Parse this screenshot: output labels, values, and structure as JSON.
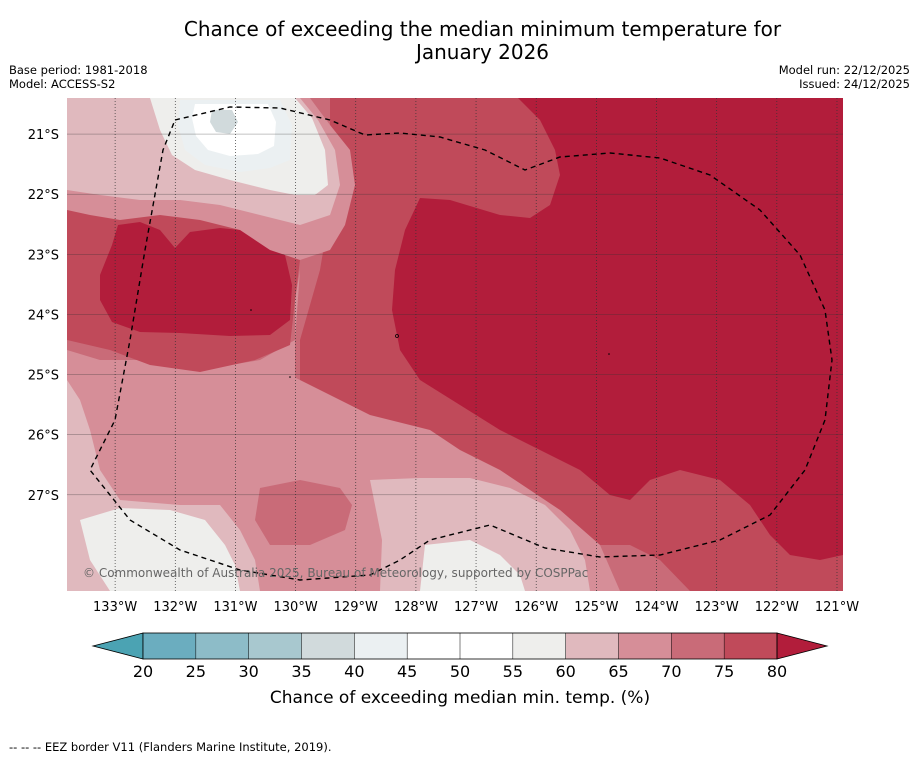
{
  "title_line1": "Chance of exceeding the median minimum temperature for",
  "title_line2": "January 2026",
  "meta": {
    "base_period": "Base period: 1981-2018",
    "model": "Model: ACCESS-S2",
    "model_run": "Model run: 22/12/2025",
    "issued": "Issued: 24/12/2025"
  },
  "copyright": "© Commonwealth of Australia 2025, Bureau of Meteorology, supported by COSPPac",
  "footer": "--  --  -- EEZ border V11 (Flanders Marine Institute, 2019).",
  "colors": {
    "c20": "#4ba3b3",
    "c25": "#6badbf",
    "c30": "#8dbcc8",
    "c35": "#a8c8cf",
    "c40": "#d1dadc",
    "c45": "#ebf0f2",
    "c50": "#ffffff",
    "c55": "#ffffff",
    "c60": "#eeeeec",
    "c65": "#e0b9be",
    "c70": "#d68e98",
    "c75": "#c96b78",
    "c80": "#c04a5a",
    "c85": "#b21d3b"
  },
  "chart_data": {
    "type": "heatmap",
    "title": "Chance of exceeding the median minimum temperature for January 2026",
    "xlabel": "",
    "ylabel": "",
    "x_ticks": [
      "133°W",
      "132°W",
      "131°W",
      "130°W",
      "129°W",
      "128°W",
      "127°W",
      "126°W",
      "125°W",
      "124°W",
      "123°W",
      "122°W",
      "121°W"
    ],
    "y_ticks": [
      "21°S",
      "22°S",
      "23°S",
      "24°S",
      "25°S",
      "26°S",
      "27°S"
    ],
    "lon_range": [
      -133.8,
      -120.9
    ],
    "lat_range": [
      -28.6,
      -20.4
    ],
    "colorbar": {
      "label": "Chance of exceeding median min. temp. (%)",
      "levels": [
        20,
        25,
        30,
        35,
        40,
        45,
        50,
        55,
        60,
        65,
        70,
        75,
        80
      ],
      "tick_labels": [
        "20",
        "25",
        "30",
        "35",
        "40",
        "45",
        "50",
        "55",
        "60",
        "65",
        "70",
        "75",
        "80"
      ],
      "extend": "both"
    },
    "regions": [
      {
        "description": "west-central warm core",
        "min_percent": 80
      },
      {
        "description": "east and central large area",
        "min_percent": 80
      },
      {
        "description": "north-west low area",
        "range_percent": [
          40,
          60
        ]
      },
      {
        "description": "south-west low area",
        "range_percent": [
          55,
          60
        ]
      },
      {
        "description": "south-central low area",
        "range_percent": [
          55,
          60
        ]
      }
    ]
  }
}
